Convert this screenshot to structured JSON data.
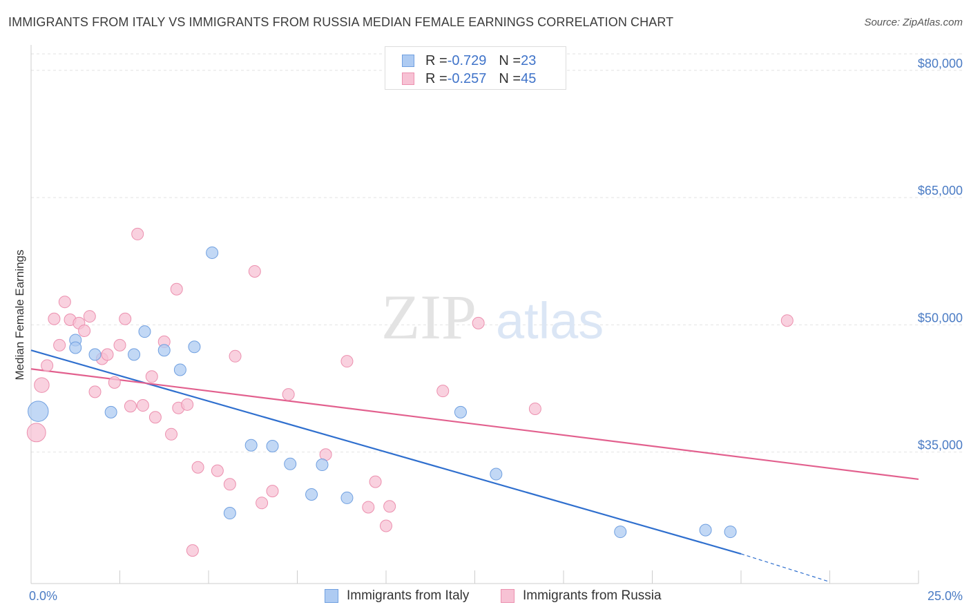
{
  "title": "IMMIGRANTS FROM ITALY VS IMMIGRANTS FROM RUSSIA MEDIAN FEMALE EARNINGS CORRELATION CHART",
  "source": "Source: ZipAtlas.com",
  "watermark": {
    "zip": "ZIP",
    "atlas": "atlas"
  },
  "colors": {
    "italy_fill": "#aecbf2",
    "italy_stroke": "#6f9fe0",
    "italy_line": "#2f6fce",
    "russia_fill": "#f7c2d4",
    "russia_stroke": "#ec8fae",
    "russia_line": "#e2608e"
  },
  "legend": {
    "italy": {
      "r_label": "R = ",
      "r_value": "-0.729",
      "n_label": "N = ",
      "n_value": "23"
    },
    "russia": {
      "r_label": "R = ",
      "r_value": "-0.257",
      "n_label": "N = ",
      "n_value": "45"
    }
  },
  "chart_data": {
    "type": "scatter",
    "title": "IMMIGRANTS FROM ITALY VS IMMIGRANTS FROM RUSSIA MEDIAN FEMALE EARNINGS CORRELATION CHART",
    "xlabel": "",
    "ylabel": "Median Female Earnings",
    "xlim": [
      0,
      25
    ],
    "ylim": [
      19500,
      83000
    ],
    "x_tick_labels": [
      "0.0%",
      "25.0%"
    ],
    "y_ticks": [
      {
        "value": 35000,
        "label": "$35,000"
      },
      {
        "value": 50000,
        "label": "$50,000"
      },
      {
        "value": 65000,
        "label": "$65,000"
      },
      {
        "value": 80000,
        "label": "$80,000"
      }
    ],
    "legend_position": "top-center",
    "series": [
      {
        "name": "Immigrants from Italy",
        "points": [
          {
            "x": 0.2,
            "y": 39800,
            "w": 3
          },
          {
            "x": 1.25,
            "y": 48200,
            "w": 1
          },
          {
            "x": 1.25,
            "y": 47300,
            "w": 1
          },
          {
            "x": 1.8,
            "y": 46500,
            "w": 1
          },
          {
            "x": 2.25,
            "y": 39700,
            "w": 1
          },
          {
            "x": 2.9,
            "y": 46500,
            "w": 1
          },
          {
            "x": 3.2,
            "y": 49200,
            "w": 1
          },
          {
            "x": 3.75,
            "y": 47000,
            "w": 1
          },
          {
            "x": 4.2,
            "y": 44700,
            "w": 1
          },
          {
            "x": 4.6,
            "y": 47400,
            "w": 1
          },
          {
            "x": 5.1,
            "y": 58500,
            "w": 1
          },
          {
            "x": 5.6,
            "y": 27800,
            "w": 1
          },
          {
            "x": 6.2,
            "y": 35800,
            "w": 1
          },
          {
            "x": 6.8,
            "y": 35700,
            "w": 1
          },
          {
            "x": 7.3,
            "y": 33600,
            "w": 1
          },
          {
            "x": 7.9,
            "y": 30000,
            "w": 1
          },
          {
            "x": 8.2,
            "y": 33500,
            "w": 1
          },
          {
            "x": 8.9,
            "y": 29600,
            "w": 1
          },
          {
            "x": 12.1,
            "y": 39700,
            "w": 1
          },
          {
            "x": 13.1,
            "y": 32400,
            "w": 1
          },
          {
            "x": 16.6,
            "y": 25600,
            "w": 1
          },
          {
            "x": 19.0,
            "y": 25800,
            "w": 1
          },
          {
            "x": 19.7,
            "y": 25600,
            "w": 1
          }
        ],
        "trend": {
          "x0": 0,
          "y0": 47000,
          "x1": 20.0,
          "y1": 23000,
          "dash_x1": 22.5,
          "dash_y1": 19700
        }
      },
      {
        "name": "Immigrants from Russia",
        "points": [
          {
            "x": 0.15,
            "y": 37300,
            "w": 2.5
          },
          {
            "x": 0.3,
            "y": 42900,
            "w": 1.6
          },
          {
            "x": 0.45,
            "y": 45200,
            "w": 1
          },
          {
            "x": 0.65,
            "y": 50700,
            "w": 1
          },
          {
            "x": 0.8,
            "y": 47600,
            "w": 1
          },
          {
            "x": 0.95,
            "y": 52700,
            "w": 1
          },
          {
            "x": 1.1,
            "y": 50600,
            "w": 1
          },
          {
            "x": 1.35,
            "y": 50200,
            "w": 1
          },
          {
            "x": 1.5,
            "y": 49300,
            "w": 1
          },
          {
            "x": 1.65,
            "y": 51000,
            "w": 1
          },
          {
            "x": 1.8,
            "y": 42100,
            "w": 1
          },
          {
            "x": 2.0,
            "y": 46000,
            "w": 1
          },
          {
            "x": 2.15,
            "y": 46500,
            "w": 1
          },
          {
            "x": 2.35,
            "y": 43200,
            "w": 1
          },
          {
            "x": 2.5,
            "y": 47600,
            "w": 1
          },
          {
            "x": 2.65,
            "y": 50700,
            "w": 1
          },
          {
            "x": 2.8,
            "y": 40400,
            "w": 1
          },
          {
            "x": 3.0,
            "y": 60700,
            "w": 1
          },
          {
            "x": 3.15,
            "y": 40500,
            "w": 1
          },
          {
            "x": 3.4,
            "y": 43900,
            "w": 1
          },
          {
            "x": 3.5,
            "y": 39100,
            "w": 1
          },
          {
            "x": 3.75,
            "y": 48000,
            "w": 1
          },
          {
            "x": 3.95,
            "y": 37100,
            "w": 1
          },
          {
            "x": 4.1,
            "y": 54200,
            "w": 1
          },
          {
            "x": 4.15,
            "y": 40200,
            "w": 1
          },
          {
            "x": 4.4,
            "y": 40600,
            "w": 1
          },
          {
            "x": 4.55,
            "y": 23400,
            "w": 1
          },
          {
            "x": 4.7,
            "y": 33200,
            "w": 1
          },
          {
            "x": 5.25,
            "y": 32800,
            "w": 1
          },
          {
            "x": 5.6,
            "y": 31200,
            "w": 1
          },
          {
            "x": 5.75,
            "y": 46300,
            "w": 1
          },
          {
            "x": 6.3,
            "y": 56300,
            "w": 1
          },
          {
            "x": 6.5,
            "y": 29000,
            "w": 1
          },
          {
            "x": 6.8,
            "y": 30400,
            "w": 1
          },
          {
            "x": 7.25,
            "y": 41800,
            "w": 1
          },
          {
            "x": 8.3,
            "y": 34700,
            "w": 1
          },
          {
            "x": 8.9,
            "y": 45700,
            "w": 1
          },
          {
            "x": 9.5,
            "y": 28500,
            "w": 1
          },
          {
            "x": 9.7,
            "y": 31500,
            "w": 1
          },
          {
            "x": 10.0,
            "y": 26300,
            "w": 1
          },
          {
            "x": 10.1,
            "y": 28600,
            "w": 1
          },
          {
            "x": 11.6,
            "y": 42200,
            "w": 1
          },
          {
            "x": 12.6,
            "y": 50200,
            "w": 1
          },
          {
            "x": 14.2,
            "y": 40100,
            "w": 1
          },
          {
            "x": 21.3,
            "y": 50500,
            "w": 1
          }
        ],
        "trend": {
          "x0": 0,
          "y0": 44800,
          "x1": 25.0,
          "y1": 31800
        }
      }
    ]
  }
}
